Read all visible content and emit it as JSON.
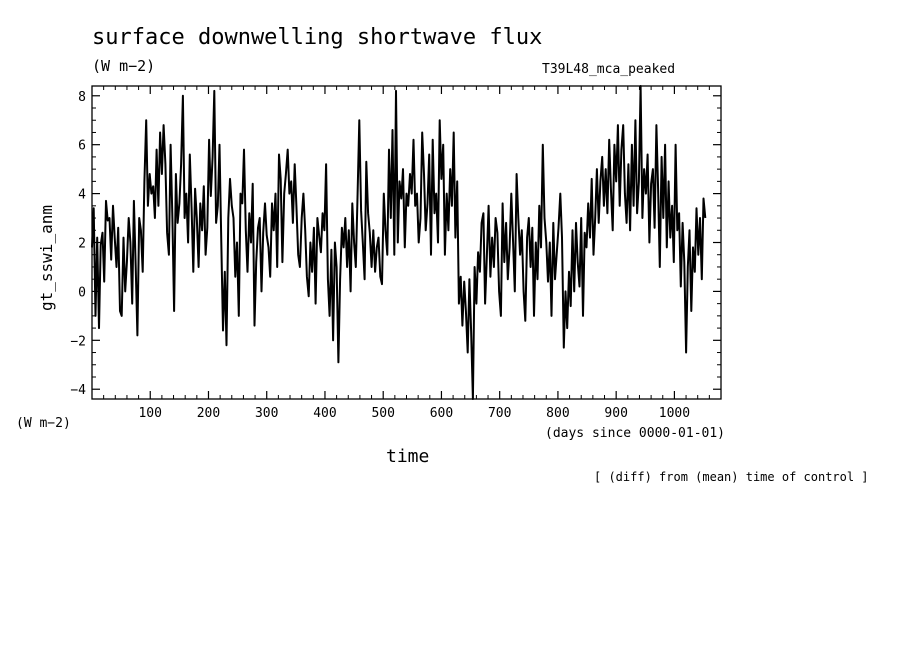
{
  "header": {
    "title": "surface downwelling shortwave flux",
    "unit_top": "(W m−2)",
    "run_label": "T39L48_mca_peaked"
  },
  "footer": {
    "unit_bottom": "(W m−2)",
    "x_unit": "(days since 0000-01-01)",
    "note": "[ (diff) from (mean) time of control ]"
  },
  "chart_data": {
    "type": "line",
    "title": "surface downwelling shortwave flux",
    "xlabel": "time",
    "ylabel": "gt_sswi_anm",
    "xlim": [
      0,
      1080
    ],
    "ylim": [
      -4.4,
      8.4
    ],
    "x_ticks": [
      100,
      200,
      300,
      400,
      500,
      600,
      700,
      800,
      900,
      1000
    ],
    "y_ticks": [
      -4,
      -2,
      0,
      2,
      4,
      6,
      8
    ],
    "y_tick_labels": [
      "−4",
      "−2",
      "0",
      "2",
      "4",
      "6",
      "8"
    ],
    "grid": false,
    "line_color": "#000000",
    "series": [
      {
        "x_start": 0,
        "x_step": 3,
        "values": [
          1.8,
          3.4,
          -1.0,
          2.2,
          -1.5,
          1.9,
          2.4,
          0.4,
          3.7,
          2.9,
          3.0,
          1.3,
          3.5,
          2.2,
          1.0,
          2.6,
          -0.8,
          -1.0,
          2.2,
          0.0,
          1.2,
          3.0,
          2.0,
          -0.5,
          3.7,
          1.0,
          -1.8,
          3.0,
          2.5,
          0.8,
          4.5,
          7.0,
          3.5,
          4.8,
          4.0,
          4.3,
          3.0,
          5.8,
          3.5,
          6.5,
          4.8,
          6.8,
          5.2,
          2.4,
          1.5,
          6.0,
          3.0,
          -0.8,
          4.8,
          2.8,
          3.6,
          5.2,
          8.0,
          3.0,
          4.0,
          2.0,
          5.6,
          3.4,
          0.8,
          4.2,
          3.0,
          1.0,
          3.6,
          2.5,
          4.3,
          1.5,
          2.6,
          6.2,
          3.9,
          5.5,
          8.2,
          2.8,
          3.5,
          6.0,
          2.0,
          -1.6,
          0.8,
          -2.2,
          3.0,
          4.6,
          3.5,
          3.0,
          0.6,
          2.0,
          -1.0,
          4.0,
          3.6,
          5.8,
          2.5,
          0.8,
          3.2,
          2.0,
          4.4,
          -1.4,
          1.2,
          2.6,
          3.0,
          0.0,
          2.4,
          3.6,
          2.3,
          1.8,
          0.6,
          3.6,
          2.5,
          4.0,
          1.0,
          5.6,
          4.6,
          1.2,
          4.0,
          4.8,
          5.8,
          4.0,
          4.5,
          2.8,
          5.2,
          3.5,
          1.5,
          1.0,
          3.0,
          4.0,
          2.5,
          0.6,
          -0.2,
          2.0,
          0.8,
          2.6,
          -0.5,
          3.0,
          2.3,
          1.6,
          3.2,
          2.5,
          5.2,
          0.5,
          -1.0,
          1.7,
          -2.0,
          2.0,
          1.0,
          -2.9,
          0.5,
          2.6,
          1.8,
          3.0,
          1.0,
          2.5,
          0.0,
          3.6,
          2.0,
          1.0,
          4.0,
          7.0,
          3.3,
          2.0,
          0.5,
          5.3,
          3.2,
          2.4,
          1.0,
          2.5,
          0.8,
          1.8,
          2.2,
          0.6,
          0.3,
          4.0,
          2.5,
          1.5,
          5.8,
          3.0,
          6.6,
          1.5,
          8.2,
          2.0,
          4.5,
          3.8,
          5.0,
          1.8,
          4.0,
          3.5,
          4.8,
          4.0,
          6.2,
          3.5,
          4.0,
          2.0,
          3.0,
          6.5,
          4.8,
          2.5,
          3.6,
          5.6,
          1.5,
          6.2,
          3.2,
          4.0,
          2.0,
          7.0,
          4.6,
          6.0,
          1.5,
          4.0,
          2.5,
          5.0,
          3.5,
          6.5,
          2.2,
          4.5,
          -0.5,
          0.6,
          -1.4,
          0.4,
          -0.8,
          -2.5,
          0.5,
          -1.6,
          -4.4,
          1.0,
          -0.5,
          1.6,
          0.8,
          2.8,
          3.2,
          -0.5,
          1.5,
          3.5,
          0.6,
          2.2,
          1.0,
          3.0,
          2.4,
          0.0,
          -1.0,
          3.6,
          1.2,
          2.8,
          0.5,
          1.8,
          4.0,
          2.0,
          0.0,
          4.8,
          3.0,
          1.5,
          2.5,
          0.0,
          -1.2,
          2.2,
          3.0,
          1.0,
          2.6,
          -1.0,
          2.0,
          0.5,
          3.5,
          1.8,
          6.0,
          3.0,
          2.0,
          0.4,
          2.0,
          -1.0,
          2.8,
          0.5,
          1.6,
          2.6,
          4.0,
          2.2,
          -2.3,
          0.0,
          -1.5,
          0.8,
          -0.6,
          2.5,
          0.0,
          2.8,
          1.2,
          0.2,
          3.0,
          -1.0,
          2.4,
          1.8,
          3.6,
          2.2,
          4.6,
          1.5,
          3.0,
          5.0,
          2.8,
          4.5,
          5.5,
          3.5,
          5.0,
          3.2,
          6.2,
          4.2,
          2.5,
          6.0,
          4.5,
          6.8,
          3.5,
          5.8,
          6.8,
          4.0,
          2.8,
          5.2,
          2.5,
          6.0,
          3.5,
          7.0,
          3.2,
          4.5,
          8.4,
          3.0,
          5.0,
          4.0,
          5.6,
          2.0,
          4.4,
          5.0,
          2.6,
          6.8,
          4.2,
          1.0,
          5.5,
          3.0,
          6.0,
          1.8,
          4.5,
          2.2,
          3.5,
          1.2,
          6.0,
          2.5,
          3.2,
          0.2,
          2.8,
          1.2,
          -2.5,
          1.0,
          2.5,
          -0.8,
          1.8,
          0.8,
          3.4,
          1.5,
          3.0,
          0.5,
          3.8,
          3.0
        ]
      }
    ]
  }
}
